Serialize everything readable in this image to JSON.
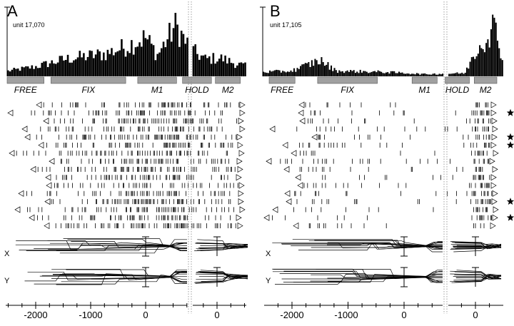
{
  "colors": {
    "ink": "#000000",
    "epoch_bar": "#a0a0a0",
    "epoch_bar_stroke": "#555555",
    "divider": "#888888",
    "star": "#000000"
  },
  "icons": {
    "trial_start_marker": "left-pointing-triangle",
    "trial_end_marker": "right-pointing-triangle",
    "flagged_trial_marker": "black-star"
  },
  "chart_data": [
    {
      "type": "bar",
      "panel": "A",
      "title": "unit 17,070",
      "epochs": [
        {
          "label": "FREE",
          "start": -1980,
          "end": -1610
        },
        {
          "label": "FIX",
          "start": -1540,
          "end": -790
        },
        {
          "label": "M1",
          "start": -670,
          "end": -280
        },
        {
          "label": "HOLD",
          "start": -220,
          "end": 70
        },
        {
          "label": "M2",
          "start": 110,
          "end": 360
        }
      ],
      "histogram_profile": {
        "bin_width_ms": 20,
        "x_range": [
          -1980,
          420
        ],
        "relative_rate_knots": [
          [
            -1980,
            0.1
          ],
          [
            -1700,
            0.18
          ],
          [
            -1400,
            0.32
          ],
          [
            -1000,
            0.42
          ],
          [
            -800,
            0.55
          ],
          [
            -600,
            0.72
          ],
          [
            -480,
            0.4
          ],
          [
            -350,
            0.78
          ],
          [
            -300,
            0.95
          ],
          [
            -150,
            0.5
          ],
          [
            0,
            0.32
          ],
          [
            150,
            0.34
          ],
          [
            300,
            0.24
          ],
          [
            420,
            0.18
          ]
        ]
      },
      "raster": {
        "trials": 16,
        "stars": []
      },
      "traces": [
        "X",
        "Y"
      ],
      "x_tick_labels": [
        "-2000",
        "-1000",
        "0",
        "0"
      ]
    },
    {
      "type": "bar",
      "panel": "B",
      "title": "unit 17,105",
      "epochs": [
        {
          "label": "FREE",
          "start": -1920,
          "end": -1600
        },
        {
          "label": "FIX",
          "start": -1320,
          "end": -580
        },
        {
          "label": "M1",
          "start": -150,
          "end": 160
        },
        {
          "label": "HOLD",
          "start": 260,
          "end": 560
        },
        {
          "label": "M2",
          "start": 620,
          "end": 900
        }
      ],
      "histogram_profile": {
        "bin_width_ms": 20,
        "x_range": [
          -2000,
          980
        ],
        "relative_rate_knots": [
          [
            -2000,
            0.08
          ],
          [
            -1650,
            0.1
          ],
          [
            -1300,
            0.3
          ],
          [
            -1100,
            0.1
          ],
          [
            -500,
            0.08
          ],
          [
            0,
            0.04
          ],
          [
            500,
            0.06
          ],
          [
            600,
            0.4
          ],
          [
            750,
            0.7
          ],
          [
            850,
            0.95
          ],
          [
            980,
            0.3
          ]
        ]
      },
      "raster": {
        "trials": 16,
        "stars": [
          1,
          4,
          5,
          12,
          14
        ]
      },
      "traces": [
        "X",
        "Y"
      ],
      "x_tick_labels": [
        "-2000",
        "-1000",
        "0",
        "0"
      ]
    }
  ]
}
